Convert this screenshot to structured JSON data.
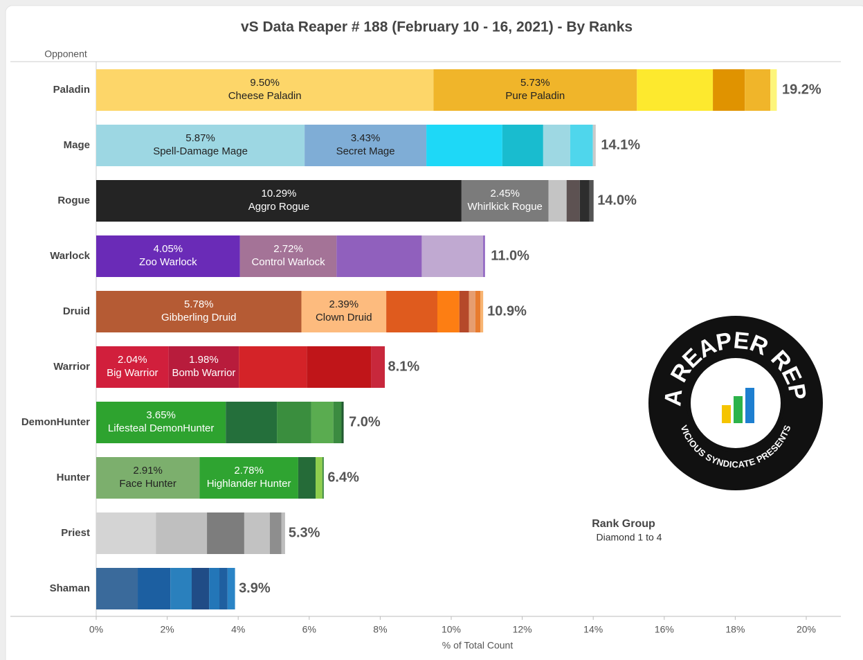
{
  "chart_data": {
    "type": "stacked-bar-horizontal",
    "title": "vS Data Reaper #  188 (February 10 - 16, 2021) - By Ranks",
    "y_axis_label": "Opponent",
    "x_axis_label": "% of Total Count",
    "xlim": [
      0,
      20
    ],
    "xticks": [
      {
        "value": 0,
        "label": "0%"
      },
      {
        "value": 2,
        "label": "2%"
      },
      {
        "value": 4,
        "label": "4%"
      },
      {
        "value": 6,
        "label": "6%"
      },
      {
        "value": 8,
        "label": "8%"
      },
      {
        "value": 10,
        "label": "10%"
      },
      {
        "value": 12,
        "label": "12%"
      },
      {
        "value": 14,
        "label": "14%"
      },
      {
        "value": 16,
        "label": "16%"
      },
      {
        "value": 18,
        "label": "18%"
      },
      {
        "value": 20,
        "label": "20%"
      }
    ],
    "filter_title": "Rank Group",
    "filter_value": "Diamond 1 to 4",
    "logo": {
      "title": "DATA REAPER REPORT",
      "subtitle": "VICIOUS SYNDICATE PRESENTS"
    },
    "bars": [
      {
        "category": "Paladin",
        "total": 19.2,
        "total_label": "19.2%",
        "segments": [
          {
            "name": "Cheese Paladin",
            "value": 9.5,
            "value_label": "9.50%",
            "color": "#fdd669"
          },
          {
            "name": "Pure Paladin",
            "value": 5.73,
            "value_label": "5.73%",
            "color": "#f0b52a"
          },
          {
            "value": 2.14,
            "color": "#fde92e"
          },
          {
            "value": 0.9,
            "color": "#e09300"
          },
          {
            "value": 0.72,
            "color": "#f0b52a"
          },
          {
            "value": 0.18,
            "color": "#fdf57a"
          }
        ]
      },
      {
        "category": "Mage",
        "total": 14.1,
        "total_label": "14.1%",
        "segments": [
          {
            "name": "Spell-Damage Mage",
            "value": 5.87,
            "value_label": "5.87%",
            "color": "#9dd7e3"
          },
          {
            "name": "Secret Mage",
            "value": 3.43,
            "value_label": "3.43%",
            "color": "#7fadd6"
          },
          {
            "value": 2.14,
            "color": "#1ed8f7"
          },
          {
            "value": 1.15,
            "color": "#19bccf"
          },
          {
            "value": 0.76,
            "color": "#9ed8e3"
          },
          {
            "value": 0.64,
            "color": "#4fd6ec"
          },
          {
            "value": 0.08,
            "color": "#c9c9c9"
          }
        ]
      },
      {
        "category": "Rogue",
        "total": 14.0,
        "total_label": "14.0%",
        "segments": [
          {
            "name": "Aggro Rogue",
            "value": 10.29,
            "value_label": "10.29%",
            "color": "#242424"
          },
          {
            "name": "Whirlkick Rogue",
            "value": 2.45,
            "value_label": "2.45%",
            "color": "#7b7b7b"
          },
          {
            "value": 0.51,
            "color": "#c4c4c4"
          },
          {
            "value": 0.37,
            "color": "#5d5252"
          },
          {
            "value": 0.27,
            "color": "#2d2d2d"
          },
          {
            "value": 0.12,
            "color": "#545454"
          }
        ]
      },
      {
        "category": "Warlock",
        "total": 11.0,
        "total_label": "11.0%",
        "segments": [
          {
            "name": "Zoo Warlock",
            "value": 4.05,
            "value_label": "4.05%",
            "color": "#6a2bb7"
          },
          {
            "name": "Control Warlock",
            "value": 2.72,
            "value_label": "2.72%",
            "color": "#a47397"
          },
          {
            "value": 2.4,
            "color": "#9060bd"
          },
          {
            "value": 1.73,
            "color": "#c0a9d1"
          },
          {
            "value": 0.05,
            "color": "#8c5fbf"
          }
        ]
      },
      {
        "category": "Druid",
        "total": 10.9,
        "total_label": "10.9%",
        "segments": [
          {
            "name": "Gibberling Druid",
            "value": 5.78,
            "value_label": "5.78%",
            "color": "#b55b34"
          },
          {
            "name": "Clown Druid",
            "value": 2.39,
            "value_label": "2.39%",
            "color": "#fdbb7e"
          },
          {
            "value": 1.44,
            "color": "#df5b1e"
          },
          {
            "value": 0.62,
            "color": "#fd7e13"
          },
          {
            "value": 0.27,
            "color": "#b5492a"
          },
          {
            "value": 0.18,
            "color": "#e69d70"
          },
          {
            "value": 0.14,
            "color": "#e87b2e"
          },
          {
            "value": 0.08,
            "color": "#f7b471"
          }
        ]
      },
      {
        "category": "Warrior",
        "total": 8.1,
        "total_label": "8.1%",
        "segments": [
          {
            "name": "Big Warrior",
            "value": 2.04,
            "value_label": "2.04%",
            "color": "#d11f3c"
          },
          {
            "name": "Bomb Warrior",
            "value": 1.98,
            "value_label": "1.98%",
            "color": "#b81c3c"
          },
          {
            "value": 1.91,
            "color": "#d42328"
          },
          {
            "value": 1.81,
            "color": "#c01519"
          },
          {
            "value": 0.39,
            "color": "#c8283c"
          }
        ]
      },
      {
        "category": "DemonHunter",
        "total": 7.0,
        "total_label": "7.0%",
        "segments": [
          {
            "name": "Lifesteal DemonHunter",
            "value": 3.65,
            "value_label": "3.65%",
            "color": "#2ea32f"
          },
          {
            "value": 1.44,
            "color": "#246f3b"
          },
          {
            "value": 0.97,
            "color": "#3a8e3e"
          },
          {
            "value": 0.62,
            "color": "#5aac50"
          },
          {
            "value": 0.23,
            "color": "#3b8b40"
          },
          {
            "value": 0.06,
            "color": "#215a30"
          }
        ]
      },
      {
        "category": "Hunter",
        "total": 6.4,
        "total_label": "6.4%",
        "segments": [
          {
            "name": "Face Hunter",
            "value": 2.91,
            "value_label": "2.91%",
            "color": "#7caf6d"
          },
          {
            "name": "Highlander Hunter",
            "value": 2.78,
            "value_label": "2.78%",
            "color": "#2fa431"
          },
          {
            "value": 0.49,
            "color": "#256b38"
          },
          {
            "value": 0.19,
            "color": "#8fce4d"
          },
          {
            "value": 0.04,
            "color": "#3b8b3e"
          }
        ]
      },
      {
        "category": "Priest",
        "total": 5.3,
        "total_label": "5.3%",
        "segments": [
          {
            "value": 1.68,
            "color": "#d4d4d4"
          },
          {
            "value": 1.44,
            "color": "#bfbfbf"
          },
          {
            "value": 1.05,
            "color": "#7d7d7d"
          },
          {
            "value": 0.72,
            "color": "#c2c2c2"
          },
          {
            "value": 0.33,
            "color": "#8e8e8e"
          },
          {
            "value": 0.1,
            "color": "#bdbdbd"
          }
        ]
      },
      {
        "category": "Shaman",
        "total": 3.9,
        "total_label": "3.9%",
        "segments": [
          {
            "value": 1.17,
            "color": "#3a6a9b"
          },
          {
            "value": 0.92,
            "color": "#1c5fa1"
          },
          {
            "value": 0.6,
            "color": "#2a80bd"
          },
          {
            "value": 0.49,
            "color": "#204c86"
          },
          {
            "value": 0.29,
            "color": "#2376b8"
          },
          {
            "value": 0.23,
            "color": "#1f5fa0"
          },
          {
            "value": 0.21,
            "color": "#2a84c6"
          }
        ]
      }
    ]
  }
}
